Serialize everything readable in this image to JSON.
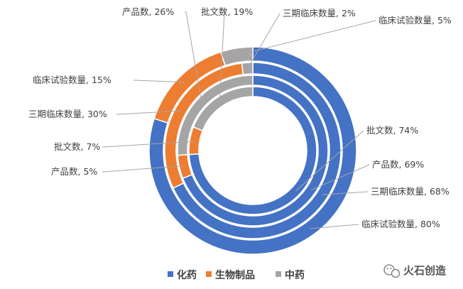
{
  "chart_data": {
    "type": "pie",
    "variant": "multi-ring-donut",
    "colors": {
      "化药": "#4472C4",
      "生物制品": "#ED7D31",
      "中药": "#A5A5A5"
    },
    "legend": {
      "placement": "bottom",
      "entries": [
        "化药",
        "生物制品",
        "中药"
      ]
    },
    "rings": [
      {
        "name": "临床试验数量",
        "order": "outer",
        "values": {
          "化药": 80,
          "生物制品": 15,
          "中药": 5
        },
        "labels": {
          "化药": "临床试验数量, 80%",
          "生物制品": "临床试验数量, 15%",
          "中药": "临床试验数量, 5%"
        }
      },
      {
        "name": "三期临床数量",
        "order": "second",
        "values": {
          "化药": 68,
          "生物制品": 30,
          "中药": 2
        },
        "labels": {
          "化药": "三期临床数量, 68%",
          "生物制品": "三期临床数量, 30%",
          "中药": "三期临床数量, 2%"
        }
      },
      {
        "name": "产品数",
        "order": "third",
        "values": {
          "化药": 69,
          "生物制品": 5,
          "中药": 26
        },
        "labels": {
          "化药": "产品数, 69%",
          "生物制品": "产品数, 5%",
          "中药": "产品数, 26%"
        }
      },
      {
        "name": "批文数",
        "order": "inner",
        "values": {
          "化药": 74,
          "生物制品": 7,
          "中药": 19
        },
        "labels": {
          "化药": "批文数, 74%",
          "生物制品": "批文数, 7%",
          "中药": "批文数, 19%"
        }
      }
    ]
  },
  "watermark": {
    "text": "火石创造",
    "icon": "wechat-icon"
  }
}
